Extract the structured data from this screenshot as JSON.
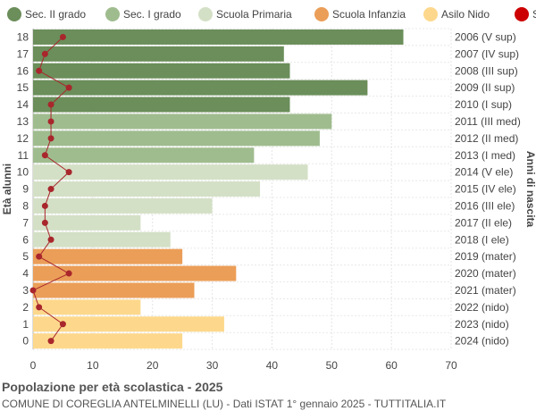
{
  "chart_data": {
    "type": "bar",
    "orientation": "horizontal",
    "title": "Popolazione per età scolastica - 2025",
    "subtitle": "COMUNE DI COREGLIA ANTELMINELLI (LU) - Dati ISTAT 1° gennaio 2025 - TUTTITALIA.IT",
    "ylabel": "Età alunni",
    "ylabel_right": "Anni di nascita",
    "xlim": [
      0,
      70
    ],
    "xticks": [
      0,
      10,
      20,
      30,
      40,
      50,
      60,
      70
    ],
    "grid": true,
    "legend_position": "top",
    "legend": [
      {
        "name": "Sec. II grado",
        "color": "#6b8e5a"
      },
      {
        "name": "Sec. I grado",
        "color": "#9fbc8e"
      },
      {
        "name": "Scuola Primaria",
        "color": "#d4e0c6"
      },
      {
        "name": "Scuola Infanzia",
        "color": "#eb9e58"
      },
      {
        "name": "Asilo Nido",
        "color": "#fdd88c"
      },
      {
        "name": "Stranieri",
        "color": "#cc0000"
      }
    ],
    "ages": [
      18,
      17,
      16,
      15,
      14,
      13,
      12,
      11,
      10,
      9,
      8,
      7,
      6,
      5,
      4,
      3,
      2,
      1,
      0
    ],
    "birth_labels": [
      "2006 (V sup)",
      "2007 (IV sup)",
      "2008 (III sup)",
      "2009 (II sup)",
      "2010 (I sup)",
      "2011 (III med)",
      "2012 (II med)",
      "2013 (I med)",
      "2014 (V ele)",
      "2015 (IV ele)",
      "2016 (III ele)",
      "2017 (II ele)",
      "2018 (I ele)",
      "2019 (mater)",
      "2020 (mater)",
      "2021 (mater)",
      "2022 (nido)",
      "2023 (nido)",
      "2024 (nido)"
    ],
    "category_index": [
      0,
      0,
      0,
      0,
      0,
      1,
      1,
      1,
      2,
      2,
      2,
      2,
      2,
      3,
      3,
      3,
      4,
      4,
      4
    ],
    "values": [
      62,
      42,
      43,
      56,
      43,
      50,
      48,
      37,
      46,
      38,
      30,
      18,
      23,
      25,
      34,
      27,
      18,
      32,
      25
    ],
    "stranieri": [
      5,
      2,
      1,
      6,
      3,
      3,
      3,
      2,
      6,
      3,
      2,
      2,
      3,
      1,
      6,
      0,
      1,
      5,
      3
    ]
  }
}
